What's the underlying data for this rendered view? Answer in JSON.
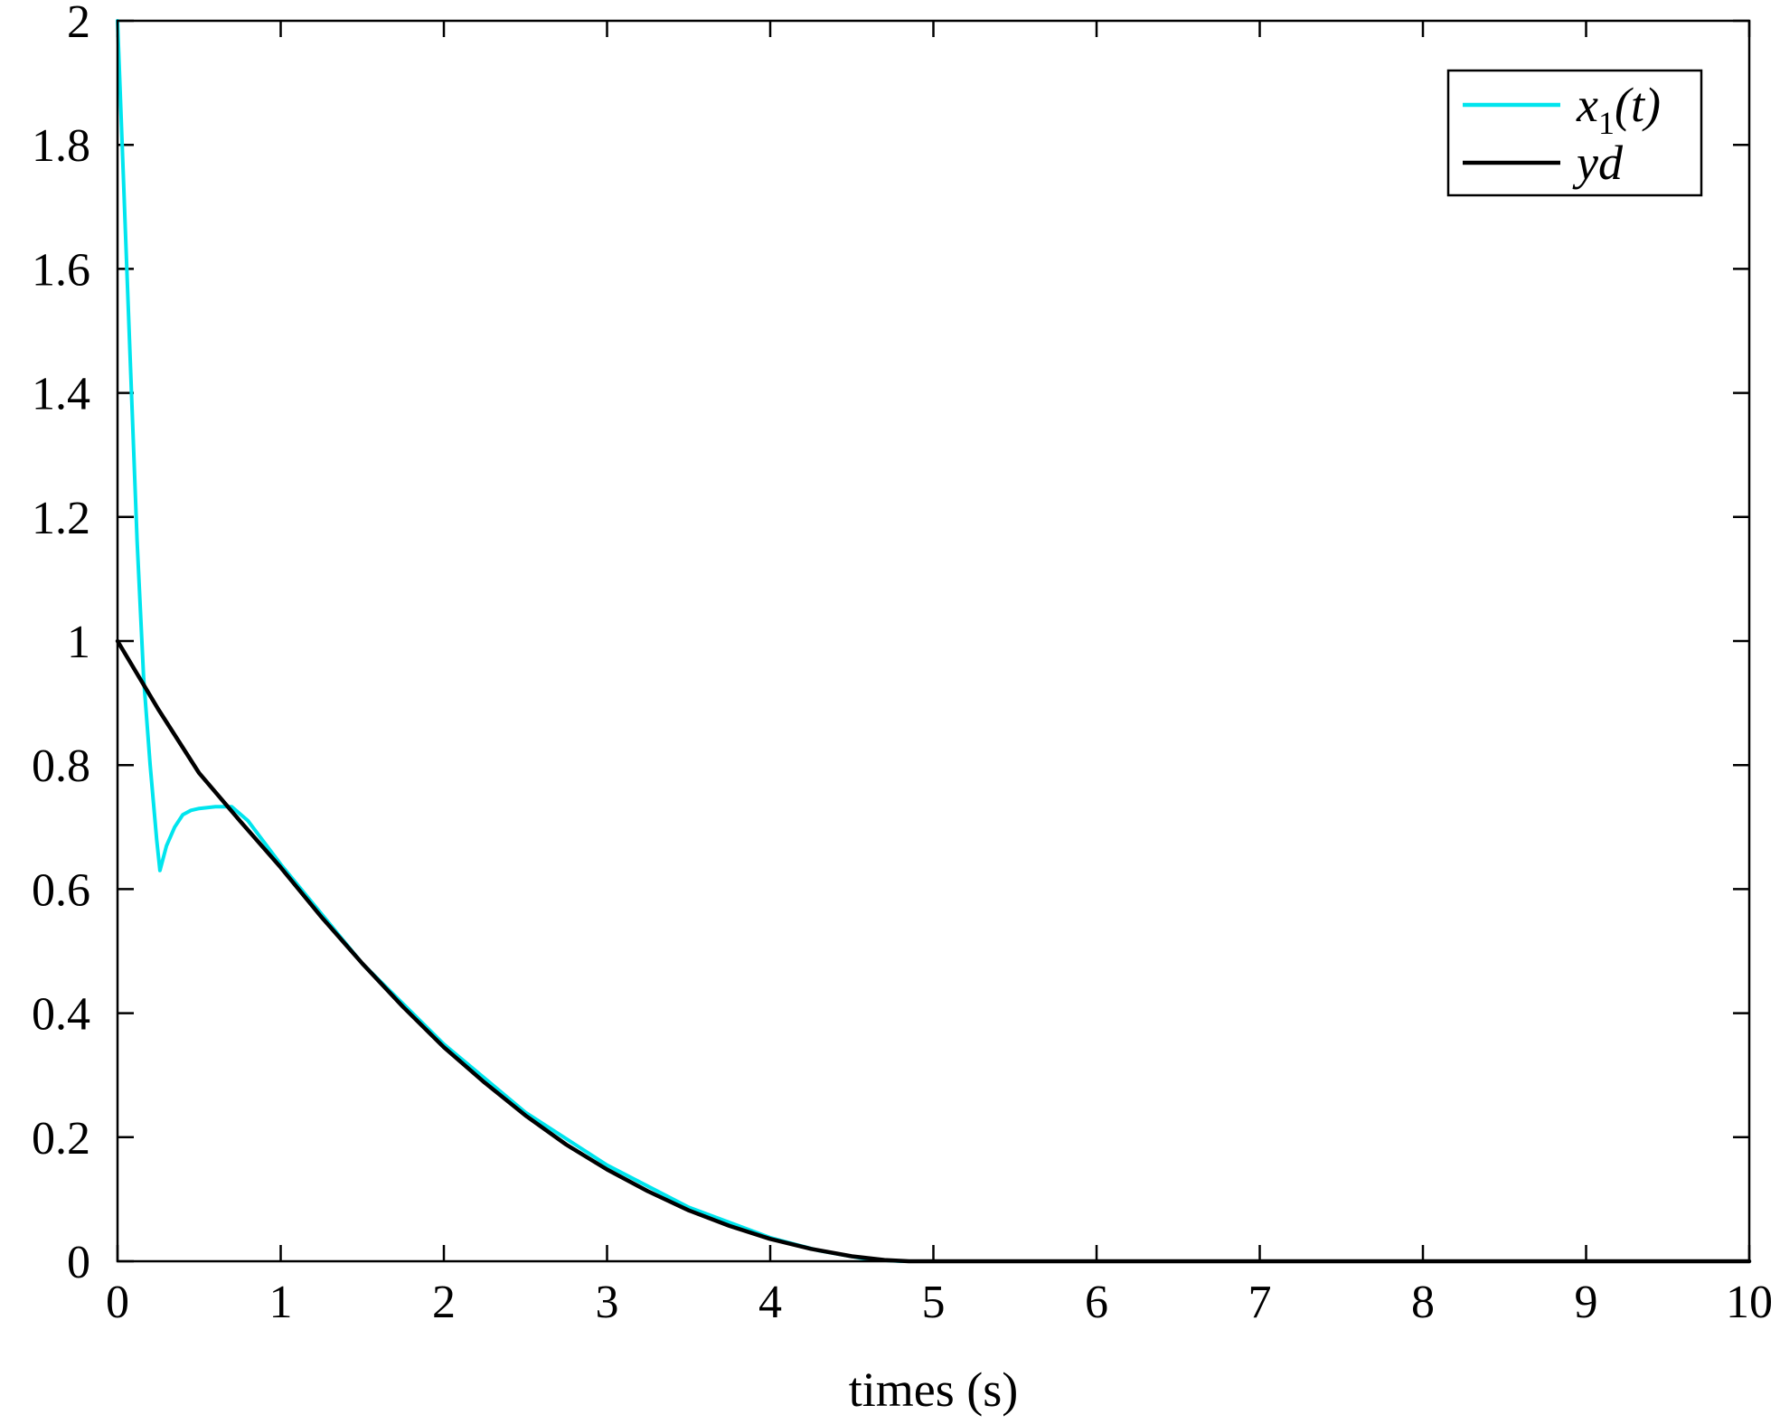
{
  "chart_data": {
    "type": "line",
    "title": "",
    "xlabel": "times (s)",
    "ylabel": "",
    "xlim": [
      0,
      10
    ],
    "ylim": [
      0,
      2
    ],
    "grid": false,
    "legend_position": "top-right",
    "x_ticks": [
      "0",
      "1",
      "2",
      "3",
      "4",
      "5",
      "6",
      "7",
      "8",
      "9",
      "10"
    ],
    "y_ticks": [
      "0",
      "0.2",
      "0.4",
      "0.6",
      "0.8",
      "1",
      "1.2",
      "1.4",
      "1.6",
      "1.8",
      "2"
    ],
    "series": [
      {
        "name": "x1(t)",
        "legend_main": "x",
        "legend_sub": "1",
        "legend_tail": "(t)",
        "color": "#00e5ee",
        "x": [
          0,
          0.04,
          0.08,
          0.12,
          0.16,
          0.2,
          0.24,
          0.26,
          0.3,
          0.35,
          0.4,
          0.45,
          0.5,
          0.6,
          0.7,
          0.8,
          1,
          1.5,
          2,
          2.5,
          3,
          3.5,
          4,
          4.3,
          4.6,
          4.8,
          5,
          6,
          7,
          8,
          9,
          10
        ],
        "y": [
          2.0,
          1.72,
          1.44,
          1.16,
          0.94,
          0.8,
          0.68,
          0.63,
          0.67,
          0.7,
          0.72,
          0.727,
          0.73,
          0.733,
          0.733,
          0.71,
          0.64,
          0.48,
          0.35,
          0.24,
          0.155,
          0.087,
          0.038,
          0.017,
          0.003,
          0.0,
          0.0,
          0.0,
          0.0,
          0.0,
          0.0,
          0.0
        ]
      },
      {
        "name": "yd",
        "legend_main": "yd",
        "legend_sub": "",
        "legend_tail": "",
        "color": "#000000",
        "x": [
          0,
          0.25,
          0.5,
          0.75,
          1,
          1.25,
          1.5,
          1.75,
          2,
          2.25,
          2.5,
          2.75,
          3,
          3.25,
          3.5,
          3.75,
          4,
          4.25,
          4.5,
          4.7,
          4.85,
          5,
          6,
          7,
          8,
          9,
          10
        ],
        "y": [
          1.0,
          0.89,
          0.787,
          0.71,
          0.635,
          0.555,
          0.48,
          0.41,
          0.345,
          0.288,
          0.235,
          0.188,
          0.148,
          0.113,
          0.082,
          0.057,
          0.036,
          0.02,
          0.008,
          0.002,
          0.0,
          0.0,
          0.0,
          0.0,
          0.0,
          0.0,
          0.0
        ]
      }
    ]
  }
}
